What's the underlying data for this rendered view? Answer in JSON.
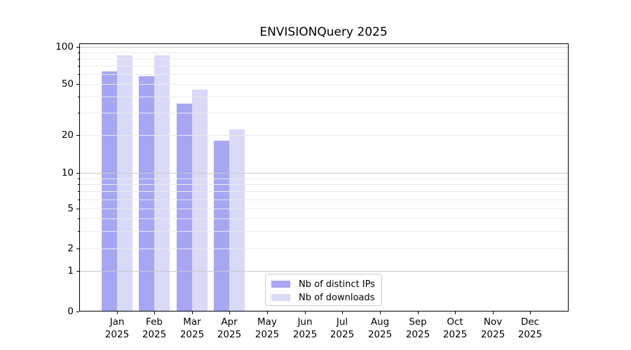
{
  "title": "ENVISIONQuery 2025",
  "chart_data": {
    "type": "bar",
    "title": "ENVISIONQuery 2025",
    "categories": [
      "Jan 2025",
      "Feb 2025",
      "Mar 2025",
      "Apr 2025",
      "May 2025",
      "Jun 2025",
      "Jul 2025",
      "Aug 2025",
      "Sep 2025",
      "Oct 2025",
      "Nov 2025",
      "Dec 2025"
    ],
    "series": [
      {
        "name": "Nb of distinct IPs",
        "color": "#a6a6f2",
        "values": [
          63,
          58,
          35,
          18,
          0,
          0,
          0,
          0,
          0,
          0,
          0,
          0
        ]
      },
      {
        "name": "Nb of downloads",
        "color": "#d9d9f8",
        "values": [
          86,
          85,
          45,
          22,
          0,
          0,
          0,
          0,
          0,
          0,
          0,
          0
        ]
      }
    ],
    "xlabel": "",
    "ylabel": "",
    "yscale": "log-compressed-to-zero",
    "ylim": [
      0,
      107
    ],
    "y_ticks": [
      0,
      1,
      2,
      5,
      10,
      20,
      50,
      100
    ],
    "y_major_gridlines": [
      1,
      10,
      100
    ],
    "y_minor_gridlines": [
      2,
      3,
      4,
      5,
      6,
      7,
      8,
      9,
      20,
      30,
      40,
      50,
      60,
      70,
      80,
      90
    ],
    "grid": "horizontal",
    "legend_position": "lower left-of-center inside plot"
  },
  "x_axis": {
    "months": [
      "Jan",
      "Feb",
      "Mar",
      "Apr",
      "May",
      "Jun",
      "Jul",
      "Aug",
      "Sep",
      "Oct",
      "Nov",
      "Dec"
    ],
    "year": "2025"
  },
  "y_axis": {
    "tick_labels": [
      "0",
      "1",
      "2",
      "5",
      "10",
      "20",
      "50",
      "100"
    ]
  },
  "legend": {
    "items": [
      {
        "label": "Nb of distinct IPs",
        "color": "#a6a6f2"
      },
      {
        "label": "Nb of downloads",
        "color": "#d9d9f8"
      }
    ]
  }
}
